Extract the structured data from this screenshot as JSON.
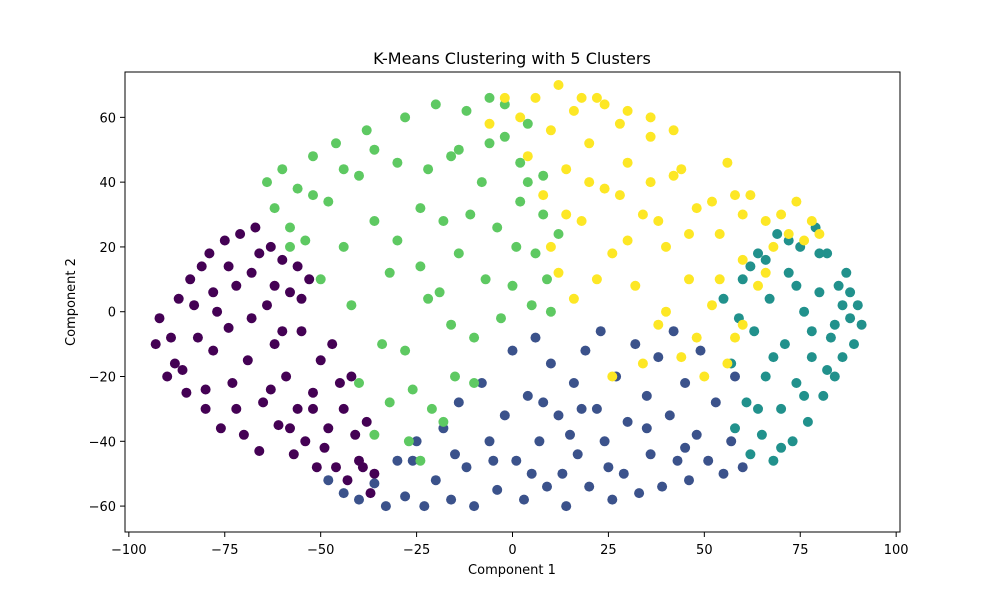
{
  "chart_data": {
    "type": "scatter",
    "title": "K-Means Clustering with 5 Clusters",
    "xlabel": "Component 1",
    "ylabel": "Component 2",
    "xlim": [
      -101,
      101
    ],
    "ylim": [
      -68,
      74
    ],
    "xticks": [
      -100,
      -75,
      -50,
      -25,
      0,
      25,
      50,
      75,
      100
    ],
    "xtick_labels": [
      "−100",
      "−75",
      "−50",
      "−25",
      "0",
      "25",
      "50",
      "75",
      "100"
    ],
    "yticks": [
      -60,
      -40,
      -20,
      0,
      20,
      40,
      60
    ],
    "ytick_labels": [
      "−60",
      "−40",
      "−20",
      "0",
      "20",
      "40",
      "60"
    ],
    "grid": false,
    "legend": "none",
    "series": [
      {
        "color": "#440154",
        "points": [
          [
            -93,
            -10
          ],
          [
            -92,
            -2
          ],
          [
            -90,
            -20
          ],
          [
            -88,
            -16
          ],
          [
            -87,
            4
          ],
          [
            -85,
            -25
          ],
          [
            -84,
            10
          ],
          [
            -82,
            -8
          ],
          [
            -81,
            14
          ],
          [
            -80,
            -30
          ],
          [
            -79,
            18
          ],
          [
            -78,
            -12
          ],
          [
            -77,
            0
          ],
          [
            -76,
            -36
          ],
          [
            -75,
            22
          ],
          [
            -74,
            -5
          ],
          [
            -73,
            -22
          ],
          [
            -72,
            8
          ],
          [
            -71,
            24
          ],
          [
            -70,
            -38
          ],
          [
            -69,
            -15
          ],
          [
            -68,
            12
          ],
          [
            -67,
            26
          ],
          [
            -66,
            -43
          ],
          [
            -65,
            -28
          ],
          [
            -64,
            2
          ],
          [
            -63,
            20
          ],
          [
            -62,
            -10
          ],
          [
            -61,
            -35
          ],
          [
            -60,
            16
          ],
          [
            -59,
            -20
          ],
          [
            -58,
            6
          ],
          [
            -57,
            -44
          ],
          [
            -56,
            -30
          ],
          [
            -55,
            -6
          ],
          [
            -54,
            -40
          ],
          [
            -53,
            10
          ],
          [
            -52,
            -25
          ],
          [
            -51,
            -48
          ],
          [
            -50,
            -15
          ],
          [
            -48,
            -36
          ],
          [
            -47,
            -10
          ],
          [
            -46,
            -48
          ],
          [
            -44,
            -30
          ],
          [
            -43,
            -52
          ],
          [
            -42,
            -20
          ],
          [
            -40,
            -46
          ],
          [
            -38,
            -34
          ],
          [
            -37,
            -56
          ],
          [
            -36,
            -50
          ],
          [
            -89,
            -8
          ],
          [
            -86,
            -18
          ],
          [
            -83,
            2
          ],
          [
            -80,
            -24
          ],
          [
            -78,
            6
          ],
          [
            -74,
            14
          ],
          [
            -72,
            -30
          ],
          [
            -68,
            -2
          ],
          [
            -66,
            18
          ],
          [
            -63,
            -24
          ],
          [
            -60,
            -6
          ],
          [
            -58,
            -36
          ],
          [
            -55,
            4
          ],
          [
            -52,
            -30
          ],
          [
            -49,
            -42
          ],
          [
            -45,
            -22
          ],
          [
            -41,
            -38
          ],
          [
            -39,
            -48
          ],
          [
            -56,
            14
          ],
          [
            -62,
            8
          ]
        ]
      },
      {
        "color": "#3b528b",
        "points": [
          [
            -48,
            -52
          ],
          [
            -44,
            -56
          ],
          [
            -40,
            -58
          ],
          [
            -36,
            -53
          ],
          [
            -33,
            -60
          ],
          [
            -30,
            -46
          ],
          [
            -28,
            -57
          ],
          [
            -25,
            -40
          ],
          [
            -23,
            -60
          ],
          [
            -20,
            -52
          ],
          [
            -18,
            -36
          ],
          [
            -16,
            -58
          ],
          [
            -14,
            -28
          ],
          [
            -12,
            -48
          ],
          [
            -10,
            -60
          ],
          [
            -8,
            -22
          ],
          [
            -6,
            -40
          ],
          [
            -4,
            -55
          ],
          [
            -2,
            -32
          ],
          [
            0,
            -12
          ],
          [
            1,
            -46
          ],
          [
            3,
            -58
          ],
          [
            4,
            -26
          ],
          [
            6,
            -8
          ],
          [
            7,
            -40
          ],
          [
            9,
            -54
          ],
          [
            10,
            -16
          ],
          [
            12,
            -32
          ],
          [
            13,
            -50
          ],
          [
            14,
            -60
          ],
          [
            16,
            -22
          ],
          [
            17,
            -44
          ],
          [
            19,
            -12
          ],
          [
            20,
            -54
          ],
          [
            22,
            -30
          ],
          [
            23,
            -6
          ],
          [
            24,
            -40
          ],
          [
            26,
            -58
          ],
          [
            27,
            -20
          ],
          [
            29,
            -50
          ],
          [
            30,
            -34
          ],
          [
            32,
            -10
          ],
          [
            33,
            -56
          ],
          [
            35,
            -26
          ],
          [
            36,
            -44
          ],
          [
            38,
            -14
          ],
          [
            39,
            -54
          ],
          [
            41,
            -32
          ],
          [
            42,
            -6
          ],
          [
            43,
            -46
          ],
          [
            45,
            -22
          ],
          [
            46,
            -52
          ],
          [
            48,
            -38
          ],
          [
            49,
            -12
          ],
          [
            51,
            -46
          ],
          [
            53,
            -28
          ],
          [
            55,
            -50
          ],
          [
            57,
            -40
          ],
          [
            58,
            -20
          ],
          [
            60,
            -48
          ],
          [
            -26,
            -46
          ],
          [
            -15,
            -44
          ],
          [
            -5,
            -46
          ],
          [
            5,
            -50
          ],
          [
            15,
            -38
          ],
          [
            25,
            -48
          ],
          [
            35,
            -36
          ],
          [
            45,
            -42
          ],
          [
            8,
            -28
          ],
          [
            18,
            -30
          ]
        ]
      },
      {
        "color": "#21918c",
        "points": [
          [
            55,
            4
          ],
          [
            57,
            -16
          ],
          [
            58,
            -36
          ],
          [
            60,
            10
          ],
          [
            61,
            -28
          ],
          [
            62,
            -44
          ],
          [
            63,
            -6
          ],
          [
            64,
            18
          ],
          [
            65,
            -38
          ],
          [
            66,
            -20
          ],
          [
            67,
            4
          ],
          [
            68,
            -46
          ],
          [
            69,
            24
          ],
          [
            70,
            -30
          ],
          [
            71,
            -10
          ],
          [
            72,
            12
          ],
          [
            73,
            -40
          ],
          [
            74,
            -22
          ],
          [
            75,
            20
          ],
          [
            76,
            0
          ],
          [
            77,
            -34
          ],
          [
            78,
            -14
          ],
          [
            79,
            26
          ],
          [
            80,
            6
          ],
          [
            81,
            -26
          ],
          [
            82,
            18
          ],
          [
            83,
            -8
          ],
          [
            84,
            -20
          ],
          [
            85,
            8
          ],
          [
            86,
            -14
          ],
          [
            87,
            12
          ],
          [
            88,
            -2
          ],
          [
            89,
            -10
          ],
          [
            90,
            2
          ],
          [
            91,
            -4
          ],
          [
            59,
            -2
          ],
          [
            62,
            14
          ],
          [
            66,
            16
          ],
          [
            70,
            -42
          ],
          [
            74,
            8
          ],
          [
            78,
            -6
          ],
          [
            82,
            -18
          ],
          [
            86,
            2
          ],
          [
            64,
            -30
          ],
          [
            68,
            -14
          ],
          [
            72,
            22
          ],
          [
            76,
            -26
          ],
          [
            80,
            18
          ],
          [
            84,
            -4
          ],
          [
            88,
            6
          ]
        ]
      },
      {
        "color": "#5ec962",
        "points": [
          [
            -64,
            40
          ],
          [
            -62,
            32
          ],
          [
            -60,
            44
          ],
          [
            -58,
            26
          ],
          [
            -56,
            38
          ],
          [
            -54,
            22
          ],
          [
            -52,
            48
          ],
          [
            -50,
            10
          ],
          [
            -48,
            34
          ],
          [
            -46,
            52
          ],
          [
            -44,
            20
          ],
          [
            -42,
            2
          ],
          [
            -40,
            42
          ],
          [
            -38,
            56
          ],
          [
            -36,
            28
          ],
          [
            -34,
            -10
          ],
          [
            -32,
            12
          ],
          [
            -30,
            46
          ],
          [
            -28,
            60
          ],
          [
            -26,
            -24
          ],
          [
            -24,
            32
          ],
          [
            -22,
            4
          ],
          [
            -20,
            64
          ],
          [
            -18,
            -34
          ],
          [
            -16,
            48
          ],
          [
            -14,
            18
          ],
          [
            -12,
            62
          ],
          [
            -10,
            -8
          ],
          [
            -8,
            40
          ],
          [
            -6,
            66
          ],
          [
            -4,
            26
          ],
          [
            -2,
            54
          ],
          [
            0,
            8
          ],
          [
            2,
            34
          ],
          [
            4,
            58
          ],
          [
            6,
            18
          ],
          [
            8,
            42
          ],
          [
            10,
            0
          ],
          [
            12,
            24
          ],
          [
            -27,
            -40
          ],
          [
            -24,
            -46
          ],
          [
            -21,
            -30
          ],
          [
            -19,
            6
          ],
          [
            -15,
            -20
          ],
          [
            -11,
            30
          ],
          [
            -7,
            10
          ],
          [
            -3,
            -2
          ],
          [
            1,
            20
          ],
          [
            5,
            2
          ],
          [
            9,
            10
          ],
          [
            -36,
            50
          ],
          [
            -44,
            44
          ],
          [
            -52,
            36
          ],
          [
            -58,
            20
          ],
          [
            -30,
            22
          ],
          [
            -22,
            44
          ],
          [
            -14,
            50
          ],
          [
            -6,
            52
          ],
          [
            2,
            46
          ],
          [
            -40,
            -22
          ],
          [
            -36,
            -38
          ],
          [
            -32,
            -28
          ],
          [
            -28,
            -12
          ],
          [
            -10,
            -22
          ],
          [
            -16,
            -4
          ],
          [
            -24,
            14
          ],
          [
            4,
            40
          ],
          [
            8,
            30
          ],
          [
            -2,
            64
          ],
          [
            -18,
            28
          ]
        ]
      },
      {
        "color": "#fde725",
        "points": [
          [
            -6,
            58
          ],
          [
            -2,
            66
          ],
          [
            2,
            60
          ],
          [
            4,
            48
          ],
          [
            6,
            66
          ],
          [
            8,
            36
          ],
          [
            10,
            56
          ],
          [
            12,
            70
          ],
          [
            14,
            44
          ],
          [
            16,
            62
          ],
          [
            18,
            28
          ],
          [
            20,
            52
          ],
          [
            22,
            66
          ],
          [
            24,
            38
          ],
          [
            26,
            18
          ],
          [
            28,
            58
          ],
          [
            30,
            46
          ],
          [
            32,
            8
          ],
          [
            34,
            30
          ],
          [
            36,
            54
          ],
          [
            38,
            -4
          ],
          [
            40,
            20
          ],
          [
            42,
            42
          ],
          [
            44,
            -14
          ],
          [
            46,
            10
          ],
          [
            48,
            32
          ],
          [
            50,
            -20
          ],
          [
            52,
            2
          ],
          [
            54,
            24
          ],
          [
            56,
            46
          ],
          [
            58,
            -8
          ],
          [
            60,
            16
          ],
          [
            62,
            36
          ],
          [
            64,
            8
          ],
          [
            66,
            28
          ],
          [
            68,
            20
          ],
          [
            70,
            30
          ],
          [
            72,
            24
          ],
          [
            74,
            34
          ],
          [
            76,
            22
          ],
          [
            78,
            28
          ],
          [
            80,
            24
          ],
          [
            44,
            44
          ],
          [
            36,
            40
          ],
          [
            28,
            36
          ],
          [
            20,
            40
          ],
          [
            14,
            30
          ],
          [
            10,
            20
          ],
          [
            22,
            10
          ],
          [
            30,
            22
          ],
          [
            38,
            28
          ],
          [
            46,
            24
          ],
          [
            54,
            10
          ],
          [
            58,
            36
          ],
          [
            48,
            -8
          ],
          [
            40,
            0
          ],
          [
            34,
            -16
          ],
          [
            26,
            -20
          ],
          [
            16,
            4
          ],
          [
            12,
            12
          ],
          [
            52,
            34
          ],
          [
            60,
            30
          ],
          [
            66,
            12
          ],
          [
            42,
            56
          ],
          [
            36,
            60
          ],
          [
            30,
            62
          ],
          [
            24,
            64
          ],
          [
            18,
            66
          ],
          [
            60,
            -4
          ],
          [
            56,
            -16
          ]
        ]
      }
    ]
  }
}
